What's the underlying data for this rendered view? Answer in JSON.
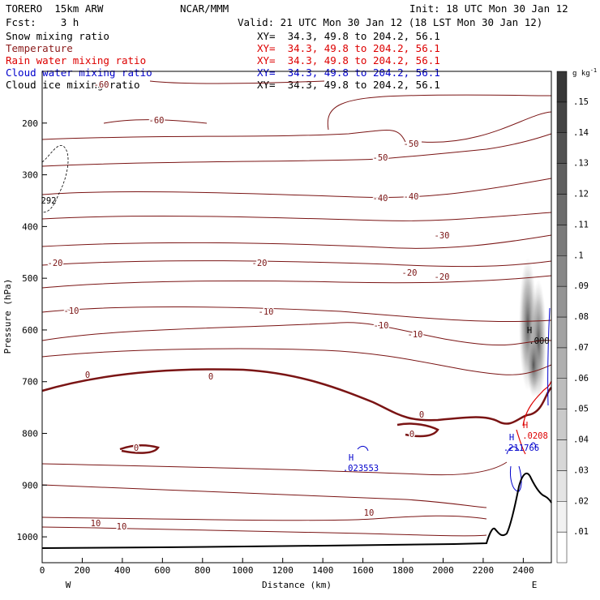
{
  "header": {
    "model": "TORERO  15km ARW",
    "center": "NCAR/MMM",
    "init": "Init: 18 UTC Mon 30 Jan 12",
    "fcst": "Fcst:    3 h",
    "valid": "Valid: 21 UTC Mon 30 Jan 12 (18 LST Mon 30 Jan 12)"
  },
  "legend": [
    {
      "label": "Snow mixing ratio",
      "color": "#000000"
    },
    {
      "label": "Temperature",
      "color": "#8b1a1a"
    },
    {
      "label": "Rain water mixing ratio",
      "color": "#dd0000"
    },
    {
      "label": "Cloud water mixing ratio",
      "color": "#0000cc"
    },
    {
      "label": "Cloud ice mixing ratio",
      "color": "#000000"
    }
  ],
  "xy_text": "XY=  34.3, 49.8 to 204.2, 56.1",
  "colorbar": {
    "unit": "g kg",
    "unit_exp": "-1",
    "ticks": [
      ".01",
      ".02",
      ".03",
      ".04",
      ".05",
      ".06",
      ".07",
      ".08",
      ".09",
      ".1",
      ".11",
      ".12",
      ".13",
      ".14",
      ".15"
    ]
  },
  "chart_data": {
    "type": "line",
    "xlabel": "Distance (km)",
    "ylabel": "Pressure (hPa)",
    "x_ticks": [
      "0",
      "200",
      "400",
      "600",
      "800",
      "1000",
      "1200",
      "1400",
      "1600",
      "1800",
      "2000",
      "2200",
      "2400"
    ],
    "y_ticks": [
      "200",
      "300",
      "400",
      "500",
      "600",
      "700",
      "800",
      "900",
      "1000"
    ],
    "xlim": [
      0,
      2540
    ],
    "ylim": [
      1050,
      100
    ],
    "x_end_labels": {
      "left": "W",
      "right": "E"
    },
    "temperature_contour_labels": [
      "-60",
      "-60",
      "-50",
      "-50",
      "-40",
      "-40",
      "-30",
      "-20",
      "-20",
      "-20",
      "-20",
      "-10",
      "-10",
      "-10",
      "-10",
      "0",
      "0",
      "0",
      "0",
      "0",
      "10",
      "10",
      "10"
    ],
    "maxima": [
      {
        "mark": "H",
        "value": ".023553",
        "color": "#0000cc"
      },
      {
        "mark": "H",
        "value": ".211766",
        "color": "#0000cc"
      },
      {
        "mark": "H",
        "value": ".0208",
        "color": "#dd0000"
      },
      {
        "mark": "H",
        "value": ".000",
        "color": "#000000"
      },
      {
        "mark": "",
        "value": "292",
        "color": "#000000"
      }
    ]
  }
}
